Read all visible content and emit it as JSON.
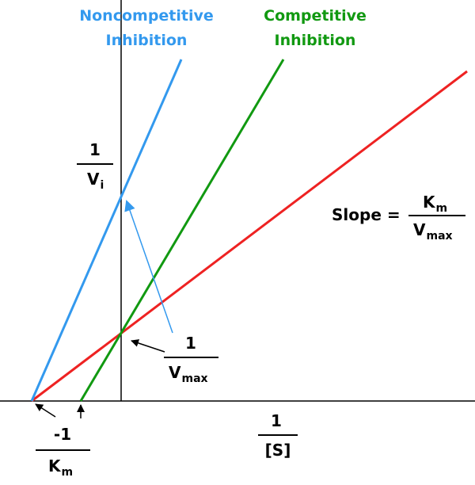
{
  "legend": {
    "noncompetitive": {
      "line1": "Noncompetitive",
      "line2": "Inhibition",
      "color": "#3399ee"
    },
    "competitive": {
      "line1": "Competitive",
      "line2": "Inhibition",
      "color": "#119911"
    },
    "uninhibited": {
      "color": "#ee2222"
    }
  },
  "y_axis_label": {
    "numerator": "1",
    "denominator_main": "V",
    "denominator_sub": "i"
  },
  "x_axis_label": {
    "numerator": "1",
    "denominator": "[S]"
  },
  "slope_label": {
    "prefix": "Slope =",
    "numerator_main": "K",
    "numerator_sub": "m",
    "denominator_main": "V",
    "denominator_sub": "max"
  },
  "vmax_label": {
    "numerator": "1",
    "denominator_main": "V",
    "denominator_sub": "max"
  },
  "km_label": {
    "numerator": "-1",
    "denominator_main": "K",
    "denominator_sub": "m"
  }
}
